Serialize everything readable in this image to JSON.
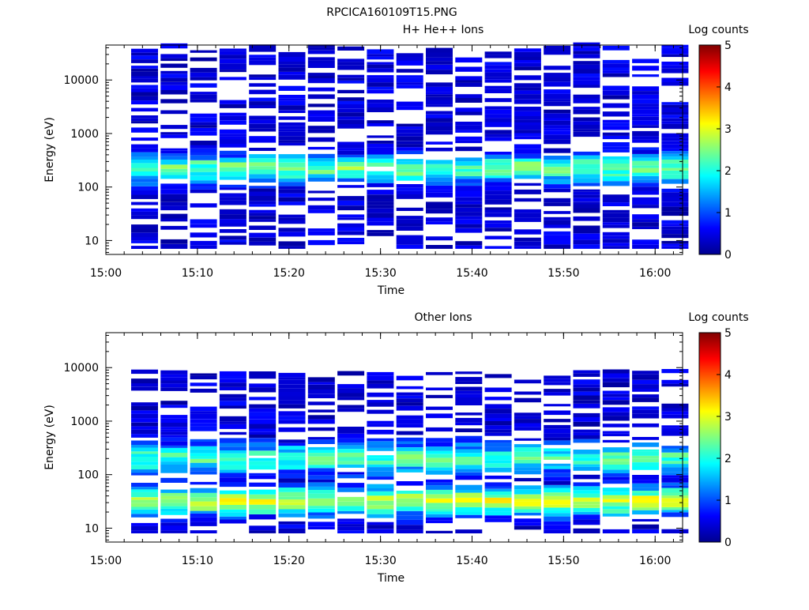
{
  "figure": {
    "title": "RPCICA160109T15.PNG"
  },
  "chart_data": [
    {
      "type": "heatmap",
      "title": "H+ He++ Ions",
      "xlabel": "Time",
      "ylabel": "Energy (eV)",
      "x_ticks": [
        "15:00",
        "15:10",
        "15:20",
        "15:30",
        "15:40",
        "15:50",
        "16:00"
      ],
      "x_range": [
        "15:00",
        "16:03"
      ],
      "y_scale": "log",
      "y_ticks": [
        "10",
        "100",
        "1000",
        "10000"
      ],
      "y_range": [
        5.5,
        45000
      ],
      "colorbar": {
        "label": "Log counts",
        "ticks": [
          "0",
          "1",
          "2",
          "3",
          "4",
          "5"
        ],
        "range": [
          0,
          5
        ]
      },
      "seed": 7,
      "peak_energy_eV": 220,
      "peak_log_counts": 2.4,
      "max_energy_eV": 42000,
      "min_energy_eV": 7
    },
    {
      "type": "heatmap",
      "title": "Other Ions",
      "xlabel": "Time",
      "ylabel": "Energy (eV)",
      "x_ticks": [
        "15:00",
        "15:10",
        "15:20",
        "15:30",
        "15:40",
        "15:50",
        "16:00"
      ],
      "x_range": [
        "15:00",
        "16:03"
      ],
      "y_scale": "log",
      "y_ticks": [
        "10",
        "100",
        "1000",
        "10000"
      ],
      "y_range": [
        5.5,
        45000
      ],
      "colorbar": {
        "label": "Log counts",
        "ticks": [
          "0",
          "1",
          "2",
          "3",
          "4",
          "5"
        ],
        "range": [
          0,
          5
        ]
      },
      "seed": 23,
      "peak_energy_eV": 32,
      "peak_log_counts": 2.9,
      "secondary_peak_energy_eV": 200,
      "secondary_peak_log_counts": 2.2,
      "max_energy_eV": 8000,
      "min_energy_eV": 8
    }
  ]
}
